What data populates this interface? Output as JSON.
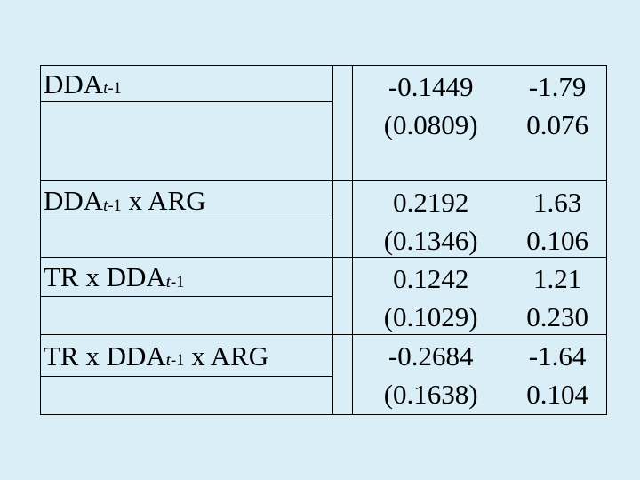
{
  "page": {
    "background_color": "#d9eef6",
    "grid_color": "#000000",
    "text_color": "#000000"
  },
  "chart_data": {
    "type": "table",
    "columns": [
      "variable",
      "coefficient",
      "t_statistic",
      "std_error",
      "p_value"
    ],
    "rows": [
      [
        "DDA t-1",
        -0.1449,
        -1.79,
        0.0809,
        0.076
      ],
      [
        "DDA t-1 x ARG",
        0.2192,
        1.63,
        0.1346,
        0.106
      ],
      [
        "TR x DDA t-1",
        0.1242,
        1.21,
        0.1029,
        0.23
      ],
      [
        "TR x DDA t-1 x ARG",
        -0.2684,
        -1.64,
        0.1638,
        0.104
      ]
    ]
  },
  "table": {
    "rows": [
      {
        "label": {
          "pre": "DDA",
          "sub_italic": "t",
          "sub_rest": "-1",
          "post": ""
        },
        "coefficient": "-0.1449",
        "t_stat": "-1.79",
        "std_error": "(0.0809)",
        "p_value": "0.076"
      },
      {
        "label": {
          "pre": "DDA",
          "sub_italic": "t",
          "sub_rest": "-1",
          "post": " x ARG"
        },
        "coefficient": "0.2192",
        "t_stat": "1.63",
        "std_error": "(0.1346)",
        "p_value": "0.106"
      },
      {
        "label": {
          "pre": "TR x DDA",
          "sub_italic": "t",
          "sub_rest": "-1",
          "post": ""
        },
        "coefficient": "0.1242",
        "t_stat": "1.21",
        "std_error": "(0.1029)",
        "p_value": "0.230"
      },
      {
        "label": {
          "pre": "TR x DDA",
          "sub_italic": "t",
          "sub_rest": "-1",
          "post": " x ARG"
        },
        "coefficient": "-0.2684",
        "t_stat": "-1.64",
        "std_error": "(0.1638)",
        "p_value": "0.104"
      }
    ]
  }
}
